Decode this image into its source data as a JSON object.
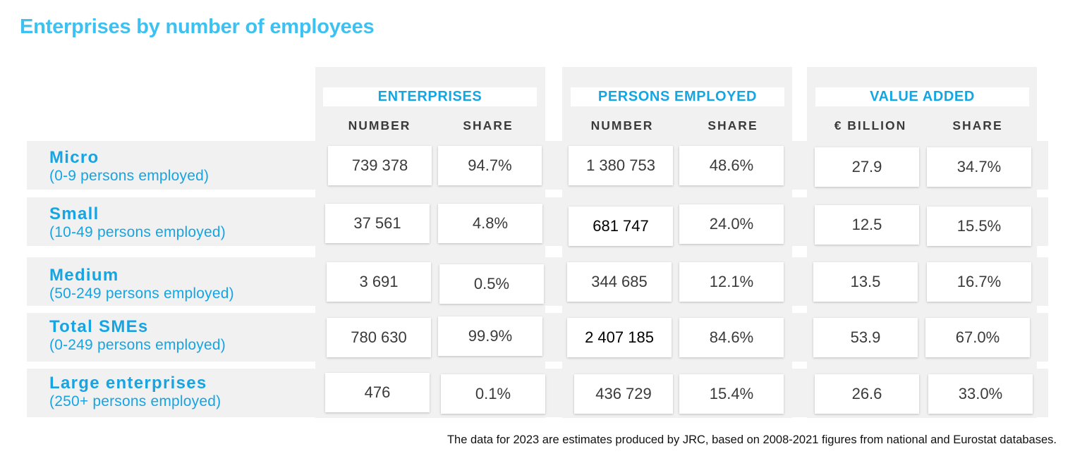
{
  "title": "Enterprises by number of employees",
  "groups": [
    {
      "label": "ENTERPRISES",
      "columns": [
        "NUMBER",
        "SHARE"
      ]
    },
    {
      "label": "PERSONS EMPLOYED",
      "columns": [
        "NUMBER",
        "SHARE"
      ]
    },
    {
      "label": "VALUE ADDED",
      "columns": [
        "€ BILLION",
        "SHARE"
      ]
    }
  ],
  "rows": [
    {
      "name": "Micro",
      "sub": "(0-9 persons employed)",
      "values": [
        "739 378",
        "94.7%",
        "1 380 753",
        "48.6%",
        "27.9",
        "34.7%"
      ]
    },
    {
      "name": "Small",
      "sub": "(10-49 persons employed)",
      "values": [
        "37 561",
        "4.8%",
        "681 747",
        "24.0%",
        "12.5",
        "15.5%"
      ]
    },
    {
      "name": "Medium",
      "sub": "(50-249 persons employed)",
      "values": [
        "3 691",
        "0.5%",
        "344 685",
        "12.1%",
        "13.5",
        "16.7%"
      ]
    },
    {
      "name": "Total SMEs",
      "sub": "(0-249 persons employed)",
      "values": [
        "780 630",
        "99.9%",
        "2 407 185",
        "84.6%",
        "53.9",
        "67.0%"
      ]
    },
    {
      "name": "Large enterprises",
      "sub": "(250+ persons employed)",
      "values": [
        "476",
        "0.1%",
        "436 729",
        "15.4%",
        "26.6",
        "33.0%"
      ]
    }
  ],
  "note": "The data for 2023 are estimates produced by JRC, based on 2008-2021 figures from national and Eurostat databases."
}
